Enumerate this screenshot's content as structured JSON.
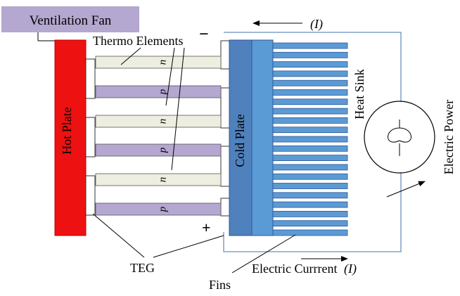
{
  "labels": {
    "ventilation_fan": "Ventilation Fan",
    "thermo_elements": "Thermo Elements",
    "hot_plate": "Hot Plate",
    "cold_plate": "Cold Plate",
    "heat_sink": "Heat Sink",
    "electric_power": "Electric Power",
    "teg": "TEG",
    "fins": "Fins",
    "electric_current": "Electric Currrent",
    "current_symbol_top": "(I)",
    "current_symbol_bottom": "(I)",
    "minus_sign": "−",
    "plus_sign": "+"
  },
  "legs": [
    "n",
    "p",
    "n",
    "p",
    "n",
    "p"
  ],
  "colors": {
    "ventilation_fan_fill": "#b4a7d0",
    "hot_plate": "#ee1111",
    "cold_plate": "#4f81bd",
    "cold_plate_right": "#5b9bd5",
    "fin": "#5b9bd5",
    "n_leg": "#eeeee0",
    "p_leg": "#b4a7d0",
    "outline": "#6b8fc0"
  }
}
